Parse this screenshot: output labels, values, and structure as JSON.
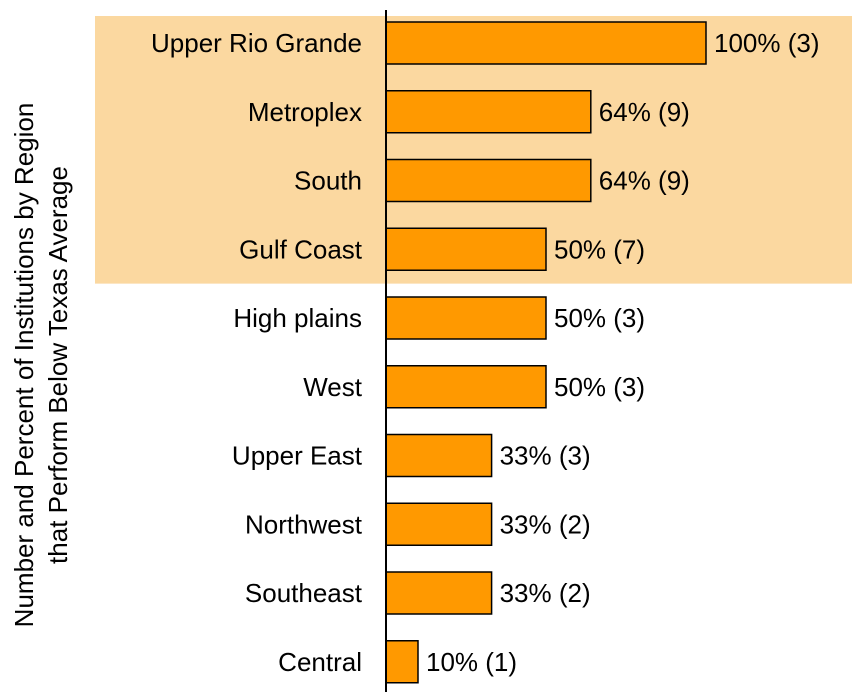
{
  "chart_data": {
    "type": "bar",
    "orientation": "horizontal",
    "ylabel": "Number and Percent of Institutions by Region that Perform Below Texas Average",
    "ylabel_lines": [
      "Number and Percent of Institutions by Region",
      "that Perform Below Texas Average"
    ],
    "categories": [
      "Upper Rio Grande",
      "Metroplex",
      "South",
      "Gulf Coast",
      "High plains",
      "West",
      "Upper East",
      "Northwest",
      "Southeast",
      "Central"
    ],
    "values": [
      100,
      64,
      64,
      50,
      50,
      50,
      33,
      33,
      33,
      10
    ],
    "counts": [
      3,
      9,
      9,
      7,
      3,
      3,
      3,
      2,
      2,
      1
    ],
    "data_labels": [
      "100% (3)",
      "64% (9)",
      "64% (9)",
      "50% (7)",
      "50% (3)",
      "50% (3)",
      "33% (3)",
      "33% (2)",
      "33% (2)",
      "10% (1)"
    ],
    "xlim": [
      0,
      100
    ],
    "highlighted_categories": [
      "Upper Rio Grande",
      "Metroplex",
      "South",
      "Gulf Coast"
    ],
    "grid": false,
    "colors": {
      "bar_fill": "#FF9900",
      "bar_stroke": "#000000",
      "highlight_band": "#FBD8A0",
      "axis": "#000000",
      "text": "#000000"
    }
  }
}
